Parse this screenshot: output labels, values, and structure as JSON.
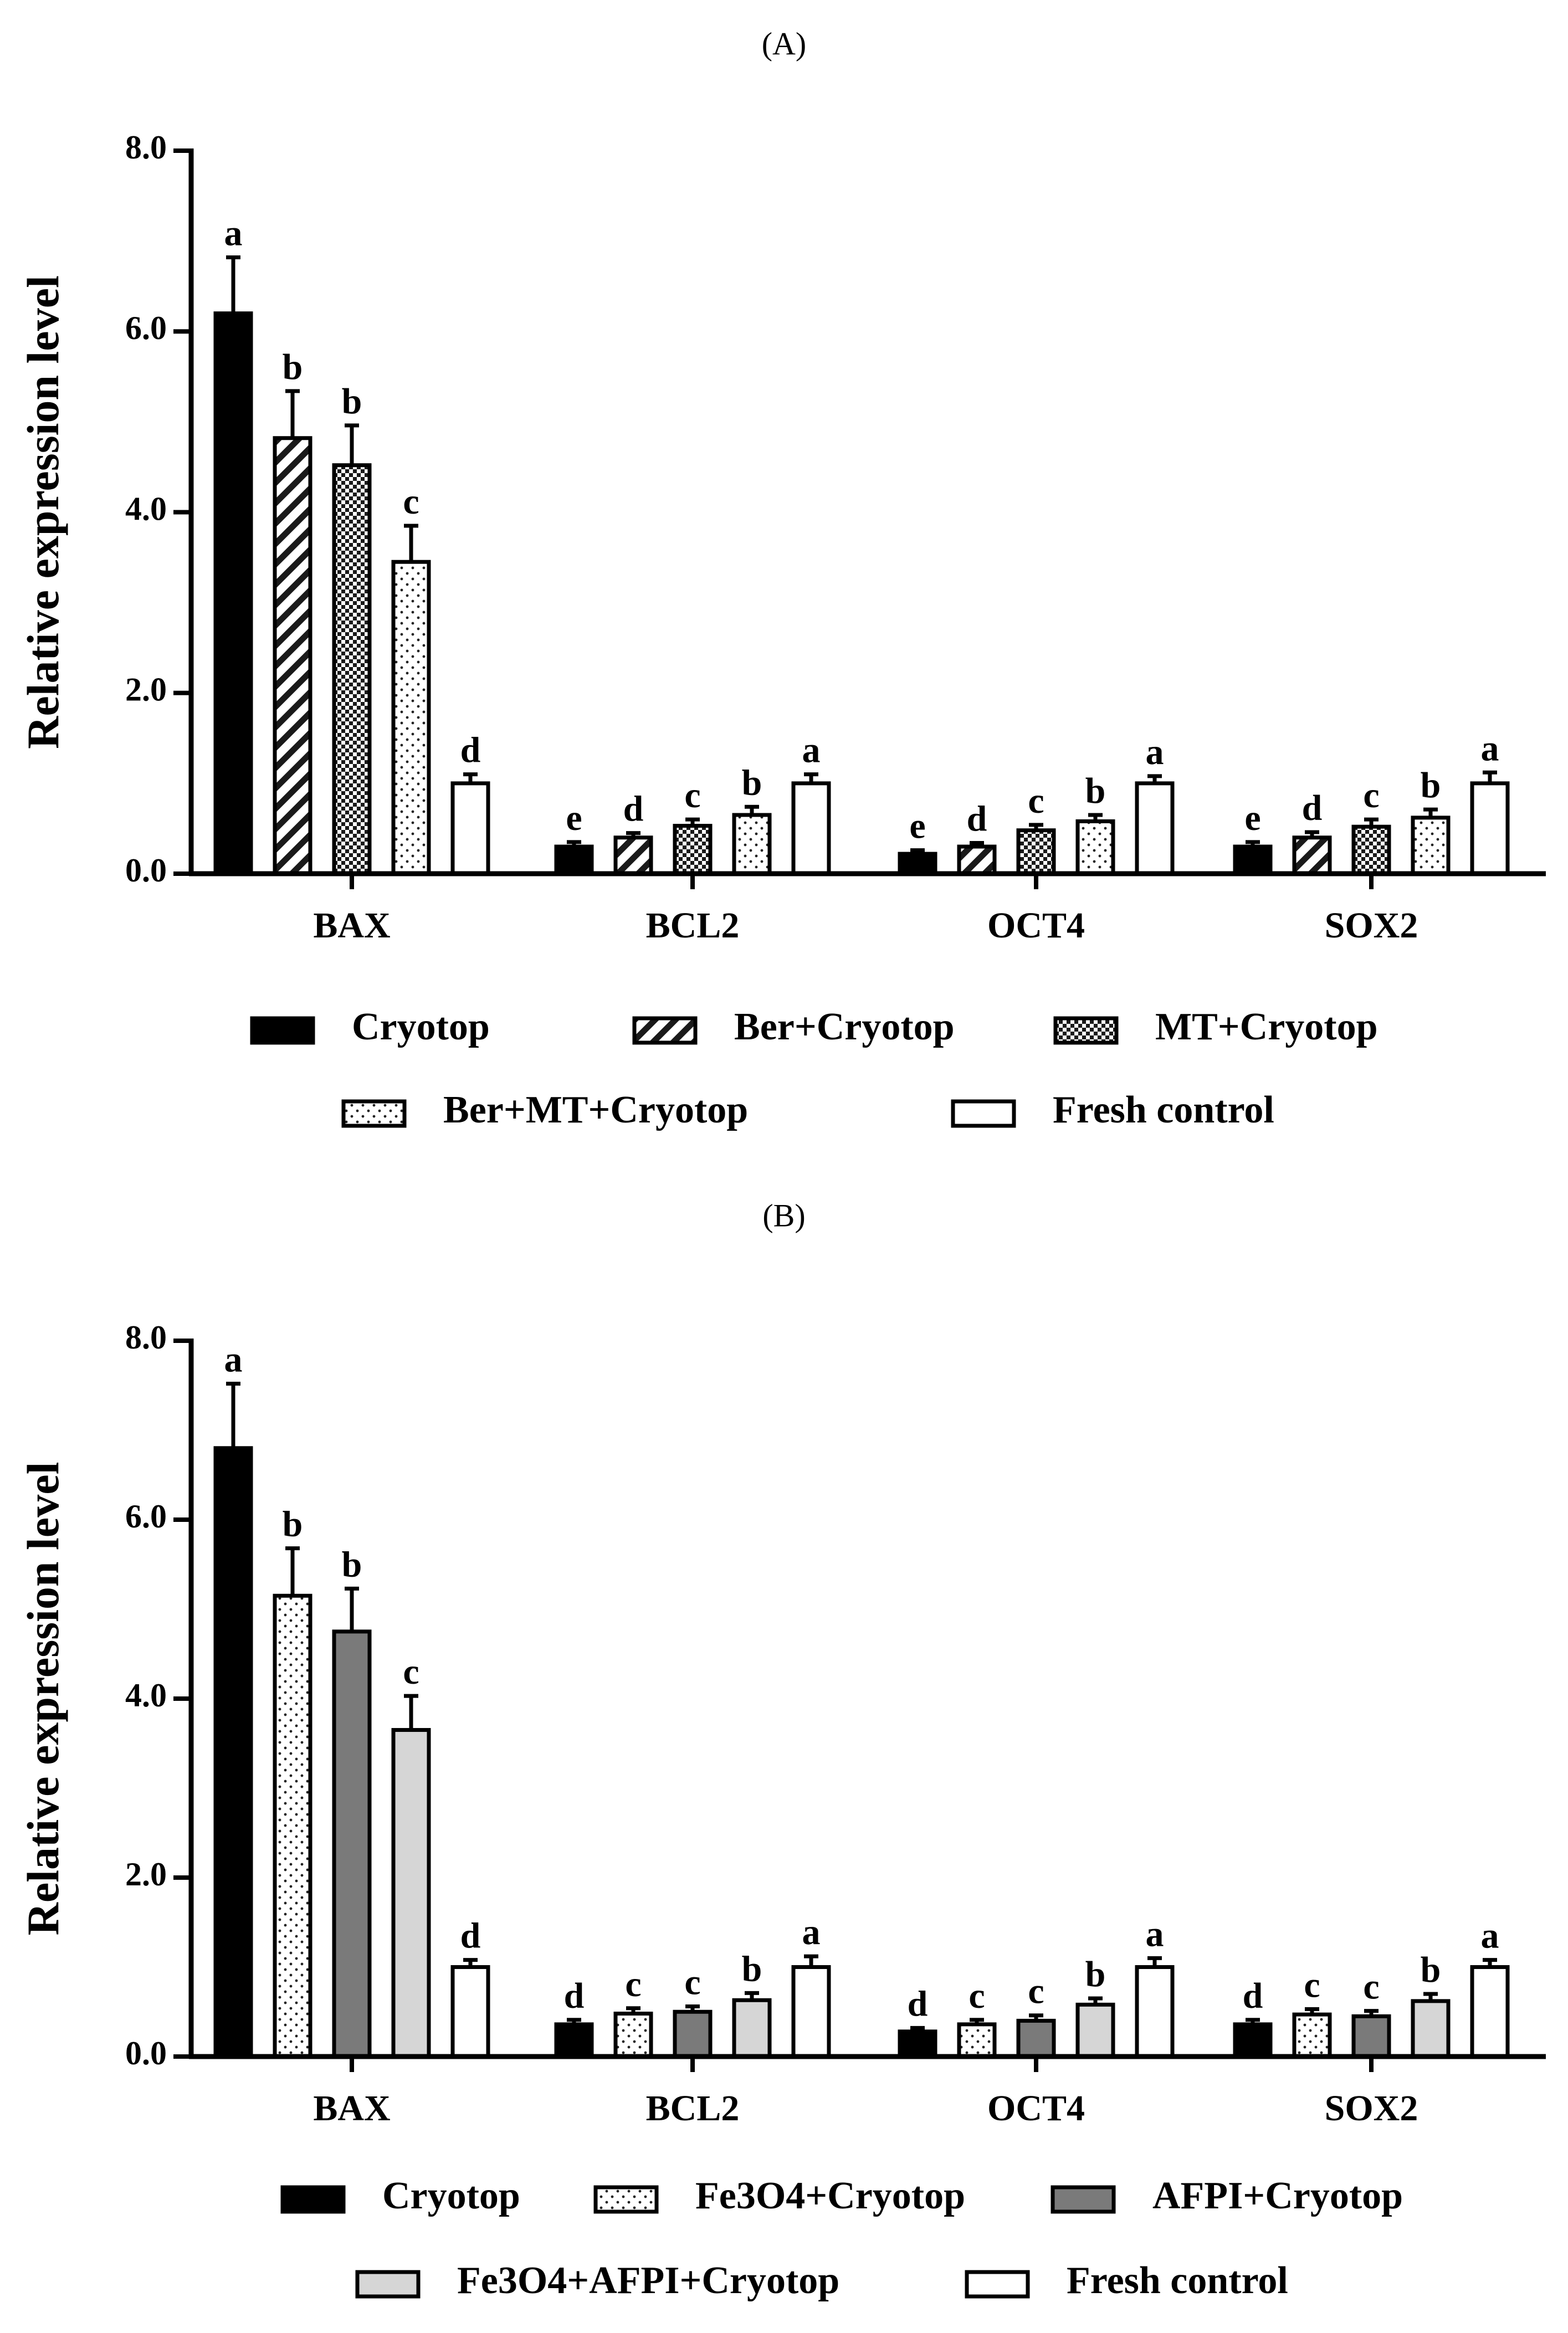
{
  "chart_data": [
    {
      "panel_label": "(A)",
      "type": "bar",
      "ylabel": "Relative expression level",
      "ylim": [
        0,
        8
      ],
      "yticks": [
        "0.0",
        "2.0",
        "4.0",
        "6.0",
        "8.0"
      ],
      "categories": [
        "BAX",
        "BCL2",
        "OCT4",
        "SOX2"
      ],
      "series": [
        {
          "name": "Cryotop",
          "pattern": "solid",
          "values": [
            6.2,
            0.3,
            0.22,
            0.3
          ],
          "errors": [
            0.62,
            0.05,
            0.04,
            0.05
          ],
          "letters": [
            "a",
            "e",
            "e",
            "e"
          ]
        },
        {
          "name": "Ber+Cryotop",
          "pattern": "diagonal",
          "values": [
            4.82,
            0.4,
            0.3,
            0.4
          ],
          "errors": [
            0.52,
            0.05,
            0.04,
            0.06
          ],
          "letters": [
            "b",
            "d",
            "d",
            "d"
          ]
        },
        {
          "name": "MT+Cryotop",
          "pattern": "checker",
          "values": [
            4.52,
            0.53,
            0.48,
            0.52
          ],
          "errors": [
            0.44,
            0.07,
            0.06,
            0.08
          ],
          "letters": [
            "b",
            "c",
            "c",
            "c"
          ]
        },
        {
          "name": "Ber+MT+Cryotop",
          "pattern": "dots",
          "values": [
            3.45,
            0.65,
            0.58,
            0.62
          ],
          "errors": [
            0.4,
            0.09,
            0.07,
            0.09
          ],
          "letters": [
            "c",
            "b",
            "b",
            "b"
          ]
        },
        {
          "name": "Fresh control",
          "pattern": "white",
          "values": [
            1.0,
            1.0,
            1.0,
            1.0
          ],
          "errors": [
            0.1,
            0.1,
            0.08,
            0.12
          ],
          "letters": [
            "d",
            "a",
            "a",
            "a"
          ]
        }
      ]
    },
    {
      "panel_label": "(B)",
      "type": "bar",
      "ylabel": "Relative expression level",
      "ylim": [
        0,
        8
      ],
      "yticks": [
        "0.0",
        "2.0",
        "4.0",
        "6.0",
        "8.0"
      ],
      "categories": [
        "BAX",
        "BCL2",
        "OCT4",
        "SOX2"
      ],
      "series": [
        {
          "name": "Cryotop",
          "pattern": "solid",
          "values": [
            6.8,
            0.36,
            0.28,
            0.36
          ],
          "errors": [
            0.72,
            0.05,
            0.04,
            0.05
          ],
          "letters": [
            "a",
            "d",
            "d",
            "d"
          ]
        },
        {
          "name": "Fe3O4+Cryotop",
          "pattern": "dots",
          "values": [
            5.15,
            0.48,
            0.36,
            0.47
          ],
          "errors": [
            0.53,
            0.06,
            0.05,
            0.06
          ],
          "letters": [
            "b",
            "c",
            "c",
            "c"
          ]
        },
        {
          "name": "AFPI+Cryotop",
          "pattern": "gray",
          "values": [
            4.75,
            0.5,
            0.4,
            0.45
          ],
          "errors": [
            0.48,
            0.06,
            0.06,
            0.06
          ],
          "letters": [
            "b",
            "c",
            "c",
            "c"
          ]
        },
        {
          "name": "Fe3O4+AFPI+Cryotop",
          "pattern": "lightgray",
          "values": [
            3.65,
            0.63,
            0.58,
            0.62
          ],
          "errors": [
            0.38,
            0.08,
            0.07,
            0.08
          ],
          "letters": [
            "c",
            "b",
            "b",
            "b"
          ]
        },
        {
          "name": "Fresh control",
          "pattern": "white",
          "values": [
            1.0,
            1.0,
            1.0,
            1.0
          ],
          "errors": [
            0.08,
            0.12,
            0.1,
            0.08
          ],
          "letters": [
            "d",
            "a",
            "a",
            "a"
          ]
        }
      ]
    }
  ]
}
